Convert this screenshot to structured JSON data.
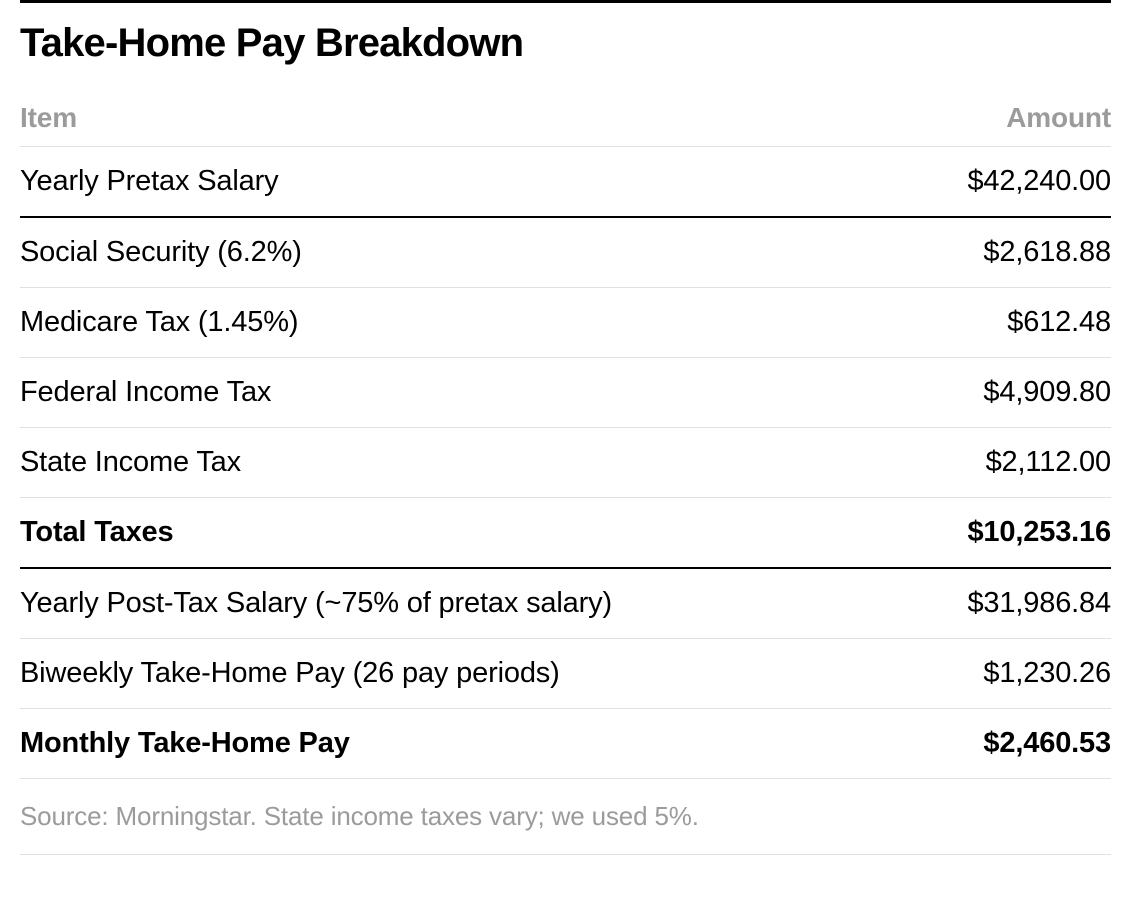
{
  "title": "Take-Home Pay Breakdown",
  "table": {
    "type": "table",
    "columns": [
      {
        "label": "Item",
        "align": "left"
      },
      {
        "label": "Amount",
        "align": "right"
      }
    ],
    "rows": [
      {
        "item": "Yearly Pretax Salary",
        "amount": "$42,240.00",
        "bold": false,
        "border": "heavy"
      },
      {
        "item": "Social Security (6.2%)",
        "amount": "$2,618.88",
        "bold": false,
        "border": "light"
      },
      {
        "item": "Medicare Tax (1.45%)",
        "amount": "$612.48",
        "bold": false,
        "border": "light"
      },
      {
        "item": "Federal Income Tax",
        "amount": "$4,909.80",
        "bold": false,
        "border": "light"
      },
      {
        "item": "State Income Tax",
        "amount": "$2,112.00",
        "bold": false,
        "border": "light"
      },
      {
        "item": "Total Taxes",
        "amount": "$10,253.16",
        "bold": true,
        "border": "heavy"
      },
      {
        "item": "Yearly Post-Tax Salary (~75% of pretax salary)",
        "amount": "$31,986.84",
        "bold": false,
        "border": "light"
      },
      {
        "item": "Biweekly Take-Home Pay (26 pay periods)",
        "amount": "$1,230.26",
        "bold": false,
        "border": "light"
      },
      {
        "item": "Monthly Take-Home Pay",
        "amount": "$2,460.53",
        "bold": true,
        "border": "light"
      }
    ]
  },
  "footer": "Source: Morningstar. State income taxes vary; we used 5%.",
  "styling": {
    "background_color": "#ffffff",
    "title_color": "#000000",
    "title_fontsize": 40,
    "title_fontweight": 700,
    "header_text_color": "#9b9b9b",
    "header_fontsize": 28,
    "header_fontweight": 700,
    "body_text_color": "#000000",
    "body_fontsize": 29,
    "body_fontweight_normal": 400,
    "body_fontweight_bold": 700,
    "footer_text_color": "#9b9b9b",
    "footer_fontsize": 26,
    "border_light_color": "#e0e0e0",
    "border_light_width": 1,
    "border_heavy_color": "#000000",
    "border_heavy_width": 2,
    "top_border_width": 3,
    "font_family": "Helvetica Neue, Helvetica, Arial, sans-serif",
    "font_stretch": "condensed",
    "row_padding_vertical": 18
  }
}
